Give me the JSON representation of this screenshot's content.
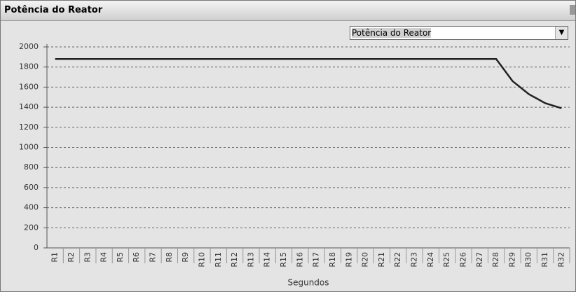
{
  "window": {
    "title": "Potência do Reator",
    "dropdown": "Potência do Reator"
  },
  "chart_data": {
    "type": "line",
    "xlabel": "Segundos",
    "categories": [
      "R1",
      "R2",
      "R3",
      "R4",
      "R5",
      "R6",
      "R7",
      "R8",
      "R9",
      "R10",
      "R11",
      "R12",
      "R13",
      "R14",
      "R15",
      "R16",
      "R17",
      "R18",
      "R19",
      "R20",
      "R21",
      "R22",
      "R23",
      "R24",
      "R25",
      "R26",
      "R27",
      "R28",
      "R29",
      "R30",
      "R31",
      "R32"
    ],
    "series": [
      {
        "color": "#222222",
        "values": [
          1880,
          1880,
          1880,
          1880,
          1880,
          1880,
          1880,
          1880,
          1880,
          1880,
          1880,
          1880,
          1880,
          1880,
          1880,
          1880,
          1880,
          1880,
          1880,
          1880,
          1880,
          1880,
          1880,
          1880,
          1880,
          1880,
          1880,
          1880,
          1660,
          1530,
          1440,
          1390
        ]
      }
    ],
    "ylim": [
      0,
      2000
    ],
    "yticks": [
      0,
      200,
      400,
      600,
      800,
      1000,
      1200,
      1400,
      1600,
      1800,
      2000
    ],
    "grid": true
  }
}
